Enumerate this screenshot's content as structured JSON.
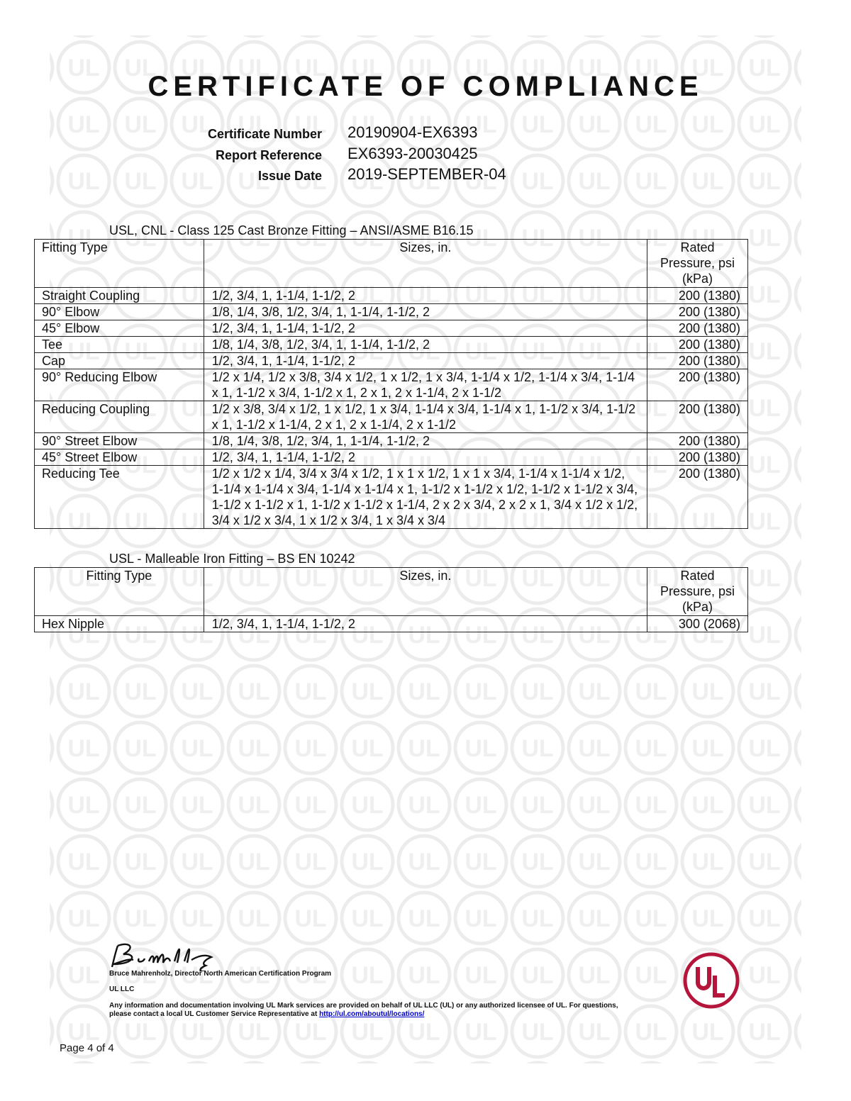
{
  "title": "CERTIFICATE OF COMPLIANCE",
  "meta": [
    {
      "label": "Certificate Number",
      "value": "20190904-EX6393"
    },
    {
      "label": "Report Reference",
      "value": "EX6393-20030425"
    },
    {
      "label": "Issue Date",
      "value": "2019-SEPTEMBER-04"
    }
  ],
  "table1": {
    "caption": "USL, CNL - Class 125 Cast  Bronze Fitting – ANSI/ASME B16.15",
    "headers": [
      "Fitting Type",
      "Sizes, in.",
      "Rated Pressure, psi (kPa)"
    ],
    "rows": [
      [
        "Straight Coupling",
        "1/2, 3/4, 1, 1-1/4, 1-1/2, 2",
        "200 (1380)"
      ],
      [
        "90° Elbow",
        "1/8, 1/4, 3/8, 1/2, 3/4, 1, 1-1/4, 1-1/2, 2",
        "200 (1380)"
      ],
      [
        "45° Elbow",
        "1/2, 3/4, 1, 1-1/4, 1-1/2, 2",
        "200 (1380)"
      ],
      [
        "Tee",
        "1/8, 1/4, 3/8, 1/2, 3/4, 1, 1-1/4, 1-1/2, 2",
        "200 (1380)"
      ],
      [
        "Cap",
        "1/2, 3/4, 1, 1-1/4, 1-1/2, 2",
        "200 (1380)"
      ],
      [
        "90° Reducing Elbow",
        "1/2 x 1/4, 1/2 x 3/8, 3/4 x 1/2, 1 x 1/2, 1 x 3/4, 1-1/4 x 1/2, 1-1/4 x 3/4, 1-1/4 x 1, 1-1/2 x 3/4, 1-1/2 x 1, 2 x 1, 2 x 1-1/4, 2 x 1-1/2",
        "200 (1380)"
      ],
      [
        "Reducing Coupling",
        "1/2 x 3/8, 3/4 x 1/2, 1 x 1/2, 1 x 3/4, 1-1/4 x 3/4, 1-1/4 x 1, 1-1/2 x 3/4, 1-1/2 x 1, 1-1/2 x 1-1/4, 2 x 1, 2 x 1-1/4, 2 x 1-1/2",
        "200 (1380)"
      ],
      [
        "90° Street Elbow",
        "1/8, 1/4, 3/8, 1/2, 3/4, 1, 1-1/4, 1-1/2, 2",
        "200 (1380)"
      ],
      [
        "45° Street Elbow",
        "1/2, 3/4, 1, 1-1/4, 1-1/2, 2",
        "200 (1380)"
      ],
      [
        "Reducing Tee",
        "1/2 x 1/2 x 1/4, 3/4 x 3/4 x 1/2, 1 x 1 x 1/2, 1 x 1 x 3/4, 1-1/4 x 1-1/4 x 1/2, 1-1/4 x 1-1/4 x 3/4, 1-1/4 x 1-1/4 x 1, 1-1/2 x 1-1/2 x 1/2, 1-1/2 x 1-1/2 x 3/4, 1-1/2 x 1-1/2 x 1, 1-1/2 x 1-1/2 x 1-1/4, 2 x 2 x 3/4, 2 x 2 x 1, 3/4 x 1/2 x 1/2, 3/4 x 1/2 x 3/4, 1 x 1/2 x 3/4, 1 x 3/4 x 3/4",
        "200 (1380)"
      ]
    ]
  },
  "table2": {
    "caption": "USL - Malleable Iron Fitting – BS EN 10242",
    "headers": [
      "Fitting Type",
      "Sizes, in.",
      "Rated Pressure, psi (kPa)"
    ],
    "rows": [
      [
        "Hex Nipple",
        "1/2, 3/4, 1, 1-1/4, 1-1/2, 2",
        "300 (2068)"
      ]
    ]
  },
  "footer": {
    "signature_name": "Bruce Mahrenholz, Director North American Certification Program",
    "company": "UL LLC",
    "disclaimer": "Any information and documentation involving UL Mark services are provided on behalf of UL LLC (UL) or any authorized licensee of UL. For questions, please contact a local UL Customer Service Representative at",
    "link": "http://ul.com/aboutul/locations/",
    "page": "Page 4 of 4",
    "logo_text": "UL",
    "logo_color": "#b5153a"
  }
}
